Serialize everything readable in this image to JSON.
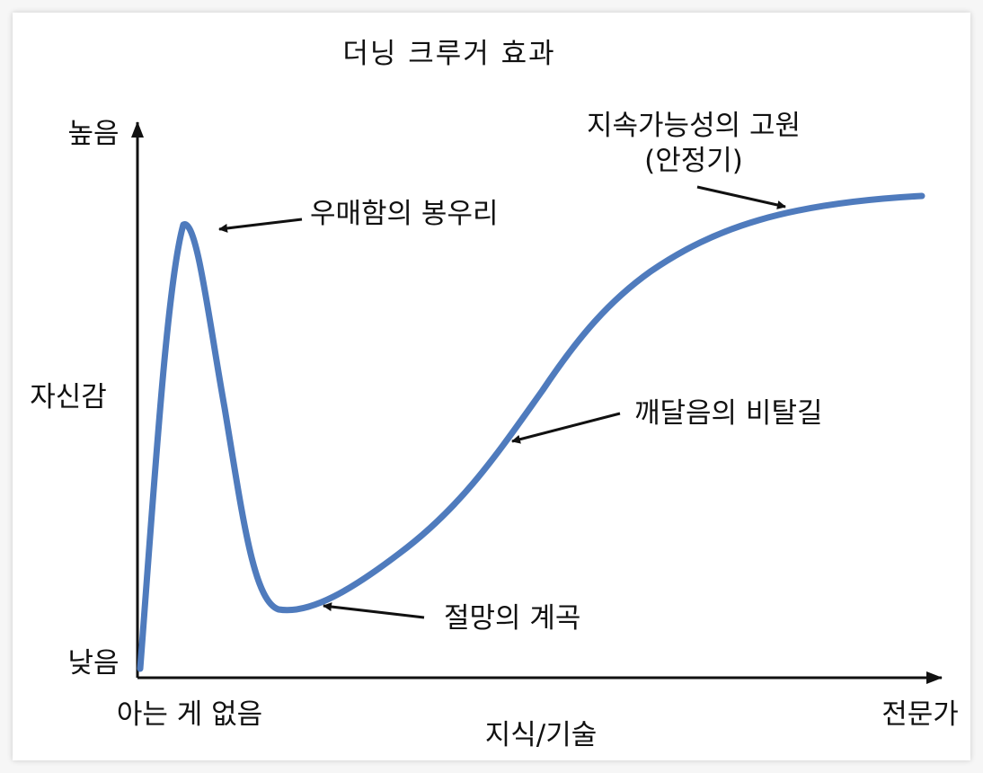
{
  "title": "더닝 크루거 효과",
  "y_axis": {
    "label": "자신감",
    "high": "높음",
    "low": "낮음"
  },
  "x_axis": {
    "label": "지식/기술",
    "start": "아는 게 없음",
    "end": "전문가"
  },
  "annotations": {
    "peak": "우매함의 봉우리",
    "valley": "절망의 계곡",
    "slope": "깨달음의 비탈길",
    "plateau_line1": "지속가능성의 고원",
    "plateau_line2": "(안정기)"
  },
  "colors": {
    "curve": "#4f7bbd",
    "axis": "#111111",
    "text": "#111111"
  }
}
